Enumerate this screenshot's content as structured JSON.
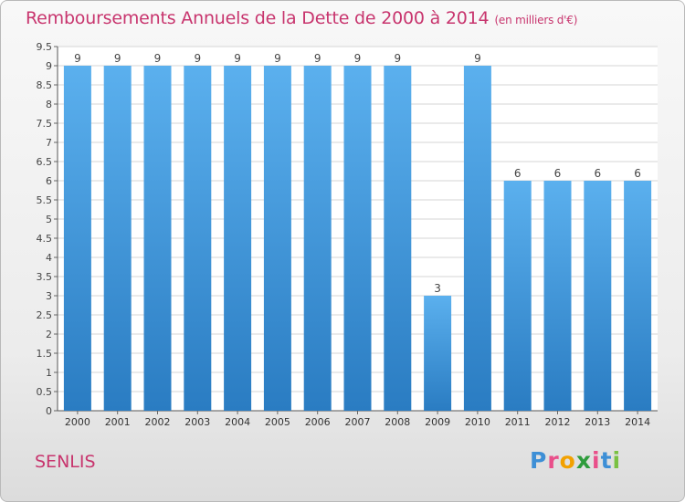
{
  "title": "Remboursements Annuels de la Dette de 2000 à 2014",
  "unit": "(en milliers d'€)",
  "city": "SENLIS",
  "logo": {
    "letters": [
      "P",
      "r",
      "o",
      "x",
      "i",
      "t",
      "i"
    ],
    "colors": [
      "#3d8fd6",
      "#e94f8a",
      "#f2a100",
      "#2e9c3c",
      "#e94f8a",
      "#3d8fd6",
      "#7ac143"
    ]
  },
  "chart_data": {
    "type": "bar",
    "categories": [
      "2000",
      "2001",
      "2002",
      "2003",
      "2004",
      "2005",
      "2006",
      "2007",
      "2008",
      "2009",
      "2010",
      "2011",
      "2012",
      "2013",
      "2014"
    ],
    "values": [
      9,
      9,
      9,
      9,
      9,
      9,
      9,
      9,
      9,
      3,
      9,
      6,
      6,
      6,
      6
    ],
    "data_labels": [
      "9",
      "9",
      "9",
      "9",
      "9",
      "9",
      "9",
      "9",
      "9",
      "3",
      "9",
      "6",
      "6",
      "6",
      "6"
    ],
    "yticks": [
      "0",
      "0.5",
      "1",
      "1.5",
      "2",
      "2.5",
      "3",
      "3.5",
      "4",
      "4.5",
      "5",
      "5.5",
      "6",
      "6.5",
      "7",
      "7.5",
      "8",
      "8.5",
      "9",
      "9.5"
    ],
    "ylim": [
      0,
      9.5
    ],
    "grid": true,
    "bar_color": "#4fa3e6",
    "title": "Remboursements Annuels de la Dette de 2000 à 2014",
    "xlabel": "",
    "ylabel": ""
  }
}
